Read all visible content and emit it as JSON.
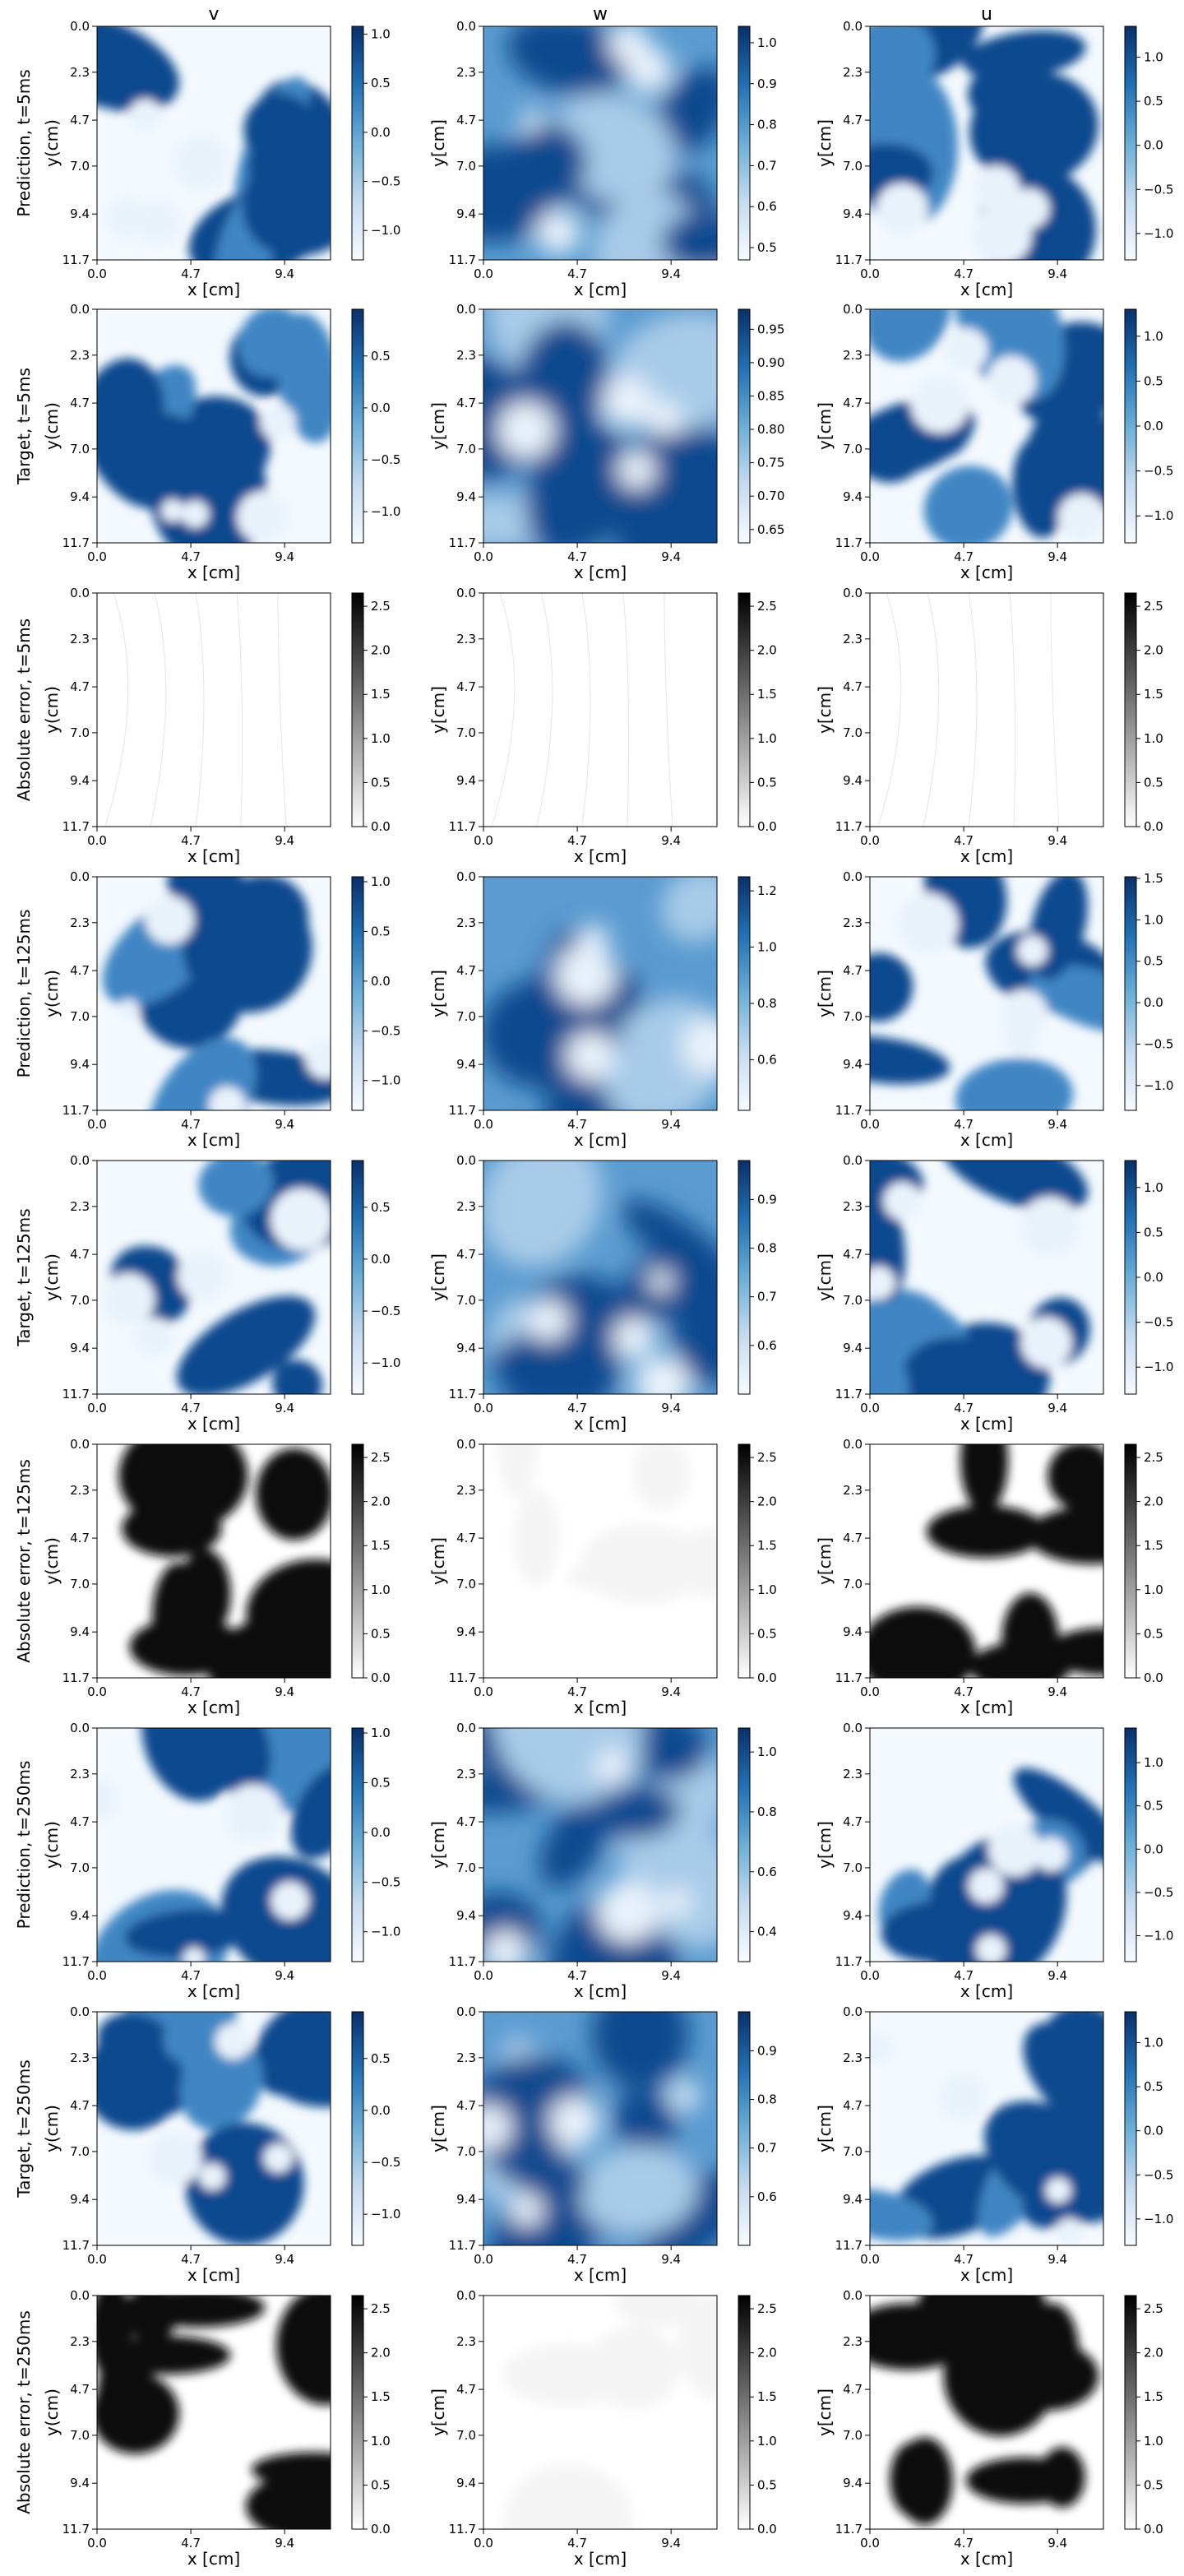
{
  "columns": [
    "v",
    "w",
    "u"
  ],
  "row_labels": [
    "Prediction, t=5ms",
    "Target, t=5ms",
    "Absolute error, t=5ms",
    "Prediction, t=125ms",
    "Target, t=125ms",
    "Absolute error, t=125ms",
    "Prediction, t=250ms",
    "Target, t=250ms",
    "Absolute error, t=250ms"
  ],
  "chart_data": {
    "type": "heatmap",
    "grid_rows": 9,
    "grid_cols": 3,
    "x_axis": {
      "label": "x [cm]",
      "ticks": [
        "0.0",
        "4.7",
        "9.4"
      ],
      "tick_values": [
        0.0,
        4.7,
        9.4
      ],
      "range": [
        0,
        11.7
      ]
    },
    "y_axis": {
      "label_first_col": "y(cm)",
      "label_other_cols": "y[cm]",
      "ticks": [
        "0.0",
        "2.3",
        "4.7",
        "7.0",
        "9.4",
        "11.7"
      ],
      "tick_values": [
        0.0,
        2.3,
        4.7,
        7.0,
        9.4,
        11.7
      ],
      "range": [
        0,
        11.7
      ],
      "inverted": true
    },
    "colormaps": {
      "blue": [
        "#f7fbff",
        "#08306b"
      ],
      "gray": [
        "#ffffff",
        "#000000"
      ]
    },
    "panels": [
      {
        "row": 0,
        "col": 0,
        "cmap": "blue",
        "cb_ticks": [
          "1.0",
          "0.5",
          "0.0",
          "−0.5",
          "−1.0"
        ],
        "cb_values": [
          1.0,
          0.5,
          0.0,
          -0.5,
          -1.0
        ],
        "cb_range": [
          -1.3,
          1.08
        ]
      },
      {
        "row": 0,
        "col": 1,
        "cmap": "blue",
        "cb_ticks": [
          "1.0",
          "0.9",
          "0.8",
          "0.7",
          "0.6",
          "0.5"
        ],
        "cb_values": [
          1.0,
          0.9,
          0.8,
          0.7,
          0.6,
          0.5
        ],
        "cb_range": [
          0.47,
          1.04
        ]
      },
      {
        "row": 0,
        "col": 2,
        "cmap": "blue",
        "cb_ticks": [
          "1.0",
          "0.5",
          "0.0",
          "−0.5",
          "−1.0"
        ],
        "cb_values": [
          1.0,
          0.5,
          0.0,
          -0.5,
          -1.0
        ],
        "cb_range": [
          -1.3,
          1.35
        ]
      },
      {
        "row": 1,
        "col": 0,
        "cmap": "blue",
        "cb_ticks": [
          "0.5",
          "0.0",
          "−0.5",
          "−1.0"
        ],
        "cb_values": [
          0.5,
          0.0,
          -0.5,
          -1.0
        ],
        "cb_range": [
          -1.3,
          0.95
        ]
      },
      {
        "row": 1,
        "col": 1,
        "cmap": "blue",
        "cb_ticks": [
          "0.95",
          "0.90",
          "0.85",
          "0.80",
          "0.75",
          "0.70",
          "0.65"
        ],
        "cb_values": [
          0.95,
          0.9,
          0.85,
          0.8,
          0.75,
          0.7,
          0.65
        ],
        "cb_range": [
          0.63,
          0.98
        ]
      },
      {
        "row": 1,
        "col": 2,
        "cmap": "blue",
        "cb_ticks": [
          "1.0",
          "0.5",
          "0.0",
          "−0.5",
          "−1.0"
        ],
        "cb_values": [
          1.0,
          0.5,
          0.0,
          -0.5,
          -1.0
        ],
        "cb_range": [
          -1.3,
          1.3
        ]
      },
      {
        "row": 2,
        "col": 0,
        "cmap": "gray",
        "cb_ticks": [
          "2.5",
          "2.0",
          "1.5",
          "1.0",
          "0.5",
          "0.0"
        ],
        "cb_values": [
          2.5,
          2.0,
          1.5,
          1.0,
          0.5,
          0.0
        ],
        "cb_range": [
          0,
          2.65
        ]
      },
      {
        "row": 2,
        "col": 1,
        "cmap": "gray",
        "cb_ticks": [
          "2.5",
          "2.0",
          "1.5",
          "1.0",
          "0.5",
          "0.0"
        ],
        "cb_values": [
          2.5,
          2.0,
          1.5,
          1.0,
          0.5,
          0.0
        ],
        "cb_range": [
          0,
          2.65
        ]
      },
      {
        "row": 2,
        "col": 2,
        "cmap": "gray",
        "cb_ticks": [
          "2.5",
          "2.0",
          "1.5",
          "1.0",
          "0.5",
          "0.0"
        ],
        "cb_values": [
          2.5,
          2.0,
          1.5,
          1.0,
          0.5,
          0.0
        ],
        "cb_range": [
          0,
          2.65
        ]
      },
      {
        "row": 3,
        "col": 0,
        "cmap": "blue",
        "cb_ticks": [
          "1.0",
          "0.5",
          "0.0",
          "−0.5",
          "−1.0"
        ],
        "cb_values": [
          1.0,
          0.5,
          0.0,
          -0.5,
          -1.0
        ],
        "cb_range": [
          -1.3,
          1.05
        ]
      },
      {
        "row": 3,
        "col": 1,
        "cmap": "blue",
        "cb_ticks": [
          "1.2",
          "1.0",
          "0.8",
          "0.6"
        ],
        "cb_values": [
          1.2,
          1.0,
          0.8,
          0.6
        ],
        "cb_range": [
          0.42,
          1.25
        ]
      },
      {
        "row": 3,
        "col": 2,
        "cmap": "blue",
        "cb_ticks": [
          "1.5",
          "1.0",
          "0.5",
          "0.0",
          "−0.5",
          "−1.0"
        ],
        "cb_values": [
          1.5,
          1.0,
          0.5,
          0.0,
          -0.5,
          -1.0
        ],
        "cb_range": [
          -1.3,
          1.52
        ]
      },
      {
        "row": 4,
        "col": 0,
        "cmap": "blue",
        "cb_ticks": [
          "0.5",
          "0.0",
          "−0.5",
          "−1.0"
        ],
        "cb_values": [
          0.5,
          0.0,
          -0.5,
          -1.0
        ],
        "cb_range": [
          -1.3,
          0.95
        ]
      },
      {
        "row": 4,
        "col": 1,
        "cmap": "blue",
        "cb_ticks": [
          "0.9",
          "0.8",
          "0.7",
          "0.6"
        ],
        "cb_values": [
          0.9,
          0.8,
          0.7,
          0.6
        ],
        "cb_range": [
          0.5,
          0.98
        ]
      },
      {
        "row": 4,
        "col": 2,
        "cmap": "blue",
        "cb_ticks": [
          "1.0",
          "0.5",
          "0.0",
          "−0.5",
          "−1.0"
        ],
        "cb_values": [
          1.0,
          0.5,
          0.0,
          -0.5,
          -1.0
        ],
        "cb_range": [
          -1.3,
          1.3
        ]
      },
      {
        "row": 5,
        "col": 0,
        "cmap": "gray",
        "cb_ticks": [
          "2.5",
          "2.0",
          "1.5",
          "1.0",
          "0.5",
          "0.0"
        ],
        "cb_values": [
          2.5,
          2.0,
          1.5,
          1.0,
          0.5,
          0.0
        ],
        "cb_range": [
          0,
          2.65
        ]
      },
      {
        "row": 5,
        "col": 1,
        "cmap": "gray",
        "cb_ticks": [
          "2.5",
          "2.0",
          "1.5",
          "1.0",
          "0.5",
          "0.0"
        ],
        "cb_values": [
          2.5,
          2.0,
          1.5,
          1.0,
          0.5,
          0.0
        ],
        "cb_range": [
          0,
          2.65
        ]
      },
      {
        "row": 5,
        "col": 2,
        "cmap": "gray",
        "cb_ticks": [
          "2.5",
          "2.0",
          "1.5",
          "1.0",
          "0.5",
          "0.0"
        ],
        "cb_values": [
          2.5,
          2.0,
          1.5,
          1.0,
          0.5,
          0.0
        ],
        "cb_range": [
          0,
          2.65
        ]
      },
      {
        "row": 6,
        "col": 0,
        "cmap": "blue",
        "cb_ticks": [
          "1.0",
          "0.5",
          "0.0",
          "−0.5",
          "−1.0"
        ],
        "cb_values": [
          1.0,
          0.5,
          0.0,
          -0.5,
          -1.0
        ],
        "cb_range": [
          -1.3,
          1.05
        ]
      },
      {
        "row": 6,
        "col": 1,
        "cmap": "blue",
        "cb_ticks": [
          "1.0",
          "0.8",
          "0.6",
          "0.4"
        ],
        "cb_values": [
          1.0,
          0.8,
          0.6,
          0.4
        ],
        "cb_range": [
          0.3,
          1.08
        ]
      },
      {
        "row": 6,
        "col": 2,
        "cmap": "blue",
        "cb_ticks": [
          "1.0",
          "0.5",
          "0.0",
          "−0.5",
          "−1.0"
        ],
        "cb_values": [
          1.0,
          0.5,
          0.0,
          -0.5,
          -1.0
        ],
        "cb_range": [
          -1.3,
          1.4
        ]
      },
      {
        "row": 7,
        "col": 0,
        "cmap": "blue",
        "cb_ticks": [
          "0.5",
          "0.0",
          "−0.5",
          "−1.0"
        ],
        "cb_values": [
          0.5,
          0.0,
          -0.5,
          -1.0
        ],
        "cb_range": [
          -1.3,
          0.95
        ]
      },
      {
        "row": 7,
        "col": 1,
        "cmap": "blue",
        "cb_ticks": [
          "0.9",
          "0.8",
          "0.7",
          "0.6"
        ],
        "cb_values": [
          0.9,
          0.8,
          0.7,
          0.6
        ],
        "cb_range": [
          0.5,
          0.98
        ]
      },
      {
        "row": 7,
        "col": 2,
        "cmap": "blue",
        "cb_ticks": [
          "1.0",
          "0.5",
          "0.0",
          "−0.5",
          "−1.0"
        ],
        "cb_values": [
          1.0,
          0.5,
          0.0,
          -0.5,
          -1.0
        ],
        "cb_range": [
          -1.3,
          1.35
        ]
      },
      {
        "row": 8,
        "col": 0,
        "cmap": "gray",
        "cb_ticks": [
          "2.5",
          "2.0",
          "1.5",
          "1.0",
          "0.5",
          "0.0"
        ],
        "cb_values": [
          2.5,
          2.0,
          1.5,
          1.0,
          0.5,
          0.0
        ],
        "cb_range": [
          0,
          2.65
        ]
      },
      {
        "row": 8,
        "col": 1,
        "cmap": "gray",
        "cb_ticks": [
          "2.5",
          "2.0",
          "1.5",
          "1.0",
          "0.5",
          "0.0"
        ],
        "cb_values": [
          2.5,
          2.0,
          1.5,
          1.0,
          0.5,
          0.0
        ],
        "cb_range": [
          0,
          2.65
        ]
      },
      {
        "row": 8,
        "col": 2,
        "cmap": "gray",
        "cb_ticks": [
          "2.5",
          "2.0",
          "1.5",
          "1.0",
          "0.5",
          "0.0"
        ],
        "cb_values": [
          2.5,
          2.0,
          1.5,
          1.0,
          0.5,
          0.0
        ],
        "cb_range": [
          0,
          2.65
        ]
      }
    ]
  }
}
